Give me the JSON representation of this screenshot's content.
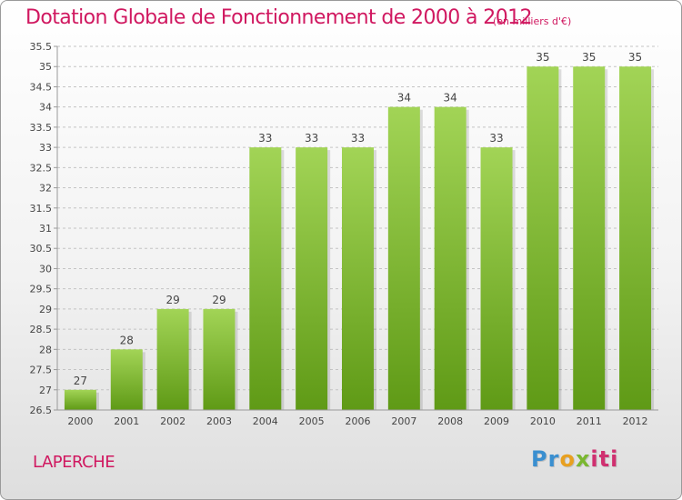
{
  "title": "Dotation Globale de Fonctionnement de 2000 à 2012",
  "subtitle": "(en milliers d'€)",
  "commune": "LAPERCHE",
  "logo": {
    "text": "Proxiti"
  },
  "colors": {
    "accent": "#d01860",
    "bar_light": "#a2d456",
    "bar_dark": "#5f9a16",
    "grid": "#c4c4c4"
  },
  "chart_data": {
    "type": "bar",
    "title": "Dotation Globale de Fonctionnement de 2000 à 2012",
    "subtitle": "(en milliers d'€)",
    "xlabel": "",
    "ylabel": "",
    "categories": [
      "2000",
      "2001",
      "2002",
      "2003",
      "2004",
      "2005",
      "2006",
      "2007",
      "2008",
      "2009",
      "2010",
      "2011",
      "2012"
    ],
    "values": [
      27,
      28,
      29,
      29,
      33,
      33,
      33,
      34,
      34,
      33,
      35,
      35,
      35
    ],
    "data_labels": [
      "27",
      "28",
      "29",
      "29",
      "33",
      "33",
      "33",
      "34",
      "34",
      "33",
      "35",
      "35",
      "35"
    ],
    "ylim": [
      26.5,
      35.5
    ],
    "yticks": [
      "26.5",
      "27",
      "27.5",
      "28",
      "28.5",
      "29",
      "29.5",
      "30",
      "30.5",
      "31",
      "31.5",
      "32",
      "32.5",
      "33",
      "33.5",
      "34",
      "34.5",
      "35",
      "35.5"
    ],
    "grid": true,
    "legend": "none"
  }
}
